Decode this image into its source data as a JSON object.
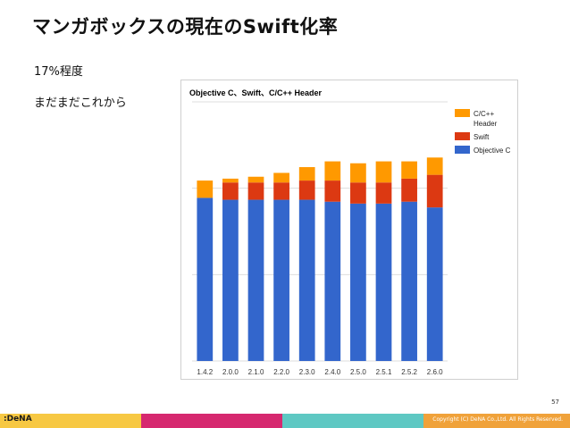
{
  "slide": {
    "title": "マンガボックスの現在のSwift化率",
    "bullets": [
      "17%程度",
      "まだまだこれから"
    ],
    "page_number": "57"
  },
  "footer": {
    "logo": ":DeNA",
    "copyright": "Copyright (C) DeNA Co.,Ltd. All Rights Reserved.",
    "colors": [
      "#f7c843",
      "#d6286f",
      "#5ec8c3",
      "#f0a23a"
    ]
  },
  "chart_data": {
    "type": "bar",
    "stacked": true,
    "title": "Objective C、Swift、C/C++ Header",
    "categories": [
      "1.4.2",
      "2.0.0",
      "2.1.0",
      "2.2.0",
      "2.3.0",
      "2.4.0",
      "2.5.0",
      "2.5.1",
      "2.5.2",
      "2.6.0"
    ],
    "series": [
      {
        "name": "Objective C",
        "color": "#3366cc",
        "values": [
          85,
          84,
          84,
          84,
          84,
          83,
          82,
          82,
          83,
          80
        ]
      },
      {
        "name": "Swift",
        "color": "#dc3912",
        "values": [
          0,
          9,
          9,
          9,
          10,
          11,
          11,
          11,
          12,
          17
        ]
      },
      {
        "name": "C/C++ Header",
        "legend_label_lines": [
          "C/C++",
          "Header"
        ],
        "color": "#ff9900",
        "values": [
          9,
          2,
          3,
          5,
          7,
          10,
          10,
          11,
          9,
          9
        ]
      }
    ],
    "ylim": [
      0,
      135
    ],
    "gridlines": [
      0,
      45,
      90,
      135
    ],
    "grid": true,
    "legend_position": "top-right"
  }
}
